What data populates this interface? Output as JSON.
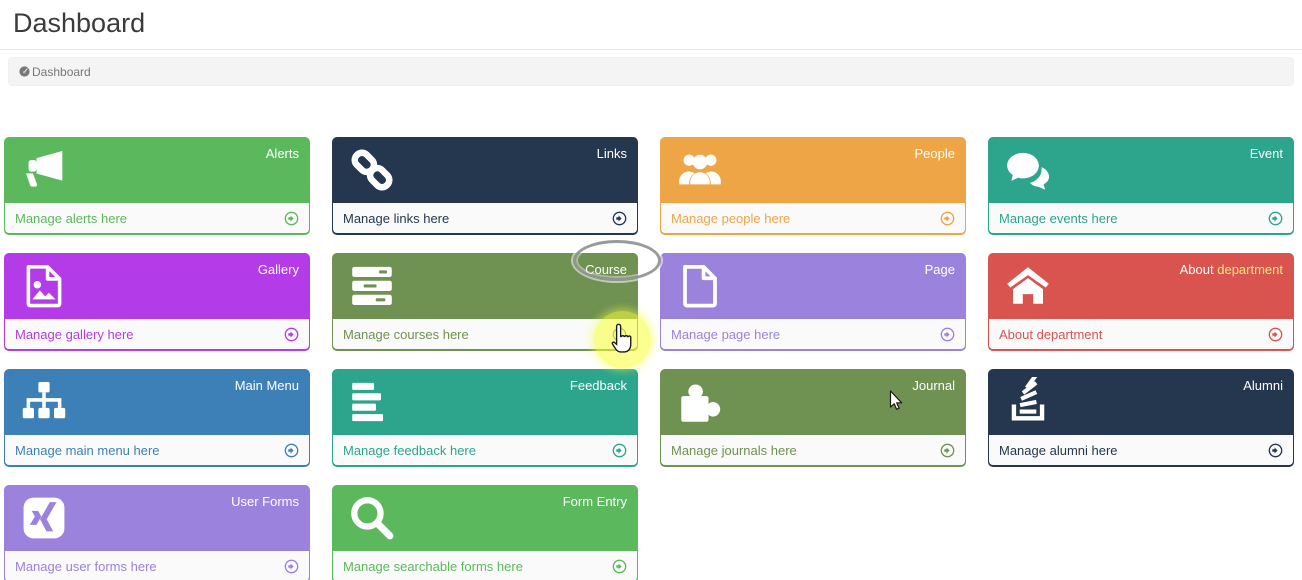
{
  "page_title": "Dashboard",
  "breadcrumb": {
    "icon": "dashboard-gauge-icon",
    "label": "Dashboard"
  },
  "footer_arrow_icon": "arrow-circle-right-icon",
  "cards": [
    {
      "id": "alerts",
      "label": "Alerts",
      "footer": "Manage alerts here",
      "icon": "megaphone-icon",
      "color": "#5cb85c"
    },
    {
      "id": "links",
      "label": "Links",
      "footer": "Manage links here",
      "icon": "chain-link-icon",
      "color": "#25374e"
    },
    {
      "id": "people",
      "label": "People",
      "footer": "Manage people here",
      "icon": "group-icon",
      "color": "#eda545"
    },
    {
      "id": "event",
      "label": "Event",
      "footer": "Manage events here",
      "icon": "speech-bubbles-icon",
      "color": "#2ca58c"
    },
    {
      "id": "gallery",
      "label": "Gallery",
      "footer": "Manage gallery here",
      "icon": "image-file-icon",
      "color": "#b43be8"
    },
    {
      "id": "course",
      "label": "Course",
      "footer": "Manage courses here",
      "icon": "server-icon",
      "color": "#6f9151"
    },
    {
      "id": "page",
      "label": "Page",
      "footer": "Manage page here",
      "icon": "file-icon",
      "color": "#9b82dd"
    },
    {
      "id": "about-department",
      "label": "About department",
      "label_parts": [
        {
          "text": "About ",
          "color": "#ffffff"
        },
        {
          "text": "department",
          "color": "#f3e97d"
        }
      ],
      "footer": "About department",
      "icon": "home-icon",
      "color": "#d9534f"
    },
    {
      "id": "main-menu",
      "label": "Main Menu",
      "footer": "Manage main menu here",
      "icon": "sitemap-icon",
      "color": "#3d80b8"
    },
    {
      "id": "feedback",
      "label": "Feedback",
      "footer": "Manage feedback here",
      "icon": "align-left-icon",
      "color": "#2ca58c"
    },
    {
      "id": "journal",
      "label": "Journal",
      "footer": "Manage journals here",
      "icon": "puzzle-piece-icon",
      "color": "#6f9151"
    },
    {
      "id": "alumni",
      "label": "Alumni",
      "footer": "Manage alumni here",
      "icon": "stack-overflow-icon",
      "color": "#25374e"
    },
    {
      "id": "user-forms",
      "label": "User Forms",
      "footer": "Manage user forms here",
      "icon": "xing-icon",
      "color": "#9b82dd"
    },
    {
      "id": "form-entry",
      "label": "Form Entry",
      "footer": "Manage searchable forms here",
      "icon": "search-icon",
      "color": "#5cb85c"
    }
  ],
  "annotations": {
    "label_ring": {
      "shape": "ellipse",
      "around": "Course card label",
      "color": "#919696"
    },
    "click_spot": {
      "shape": "circle",
      "around": "Manage courses here arrow",
      "color": "#f8ff3c"
    },
    "hand_cursor": {
      "icon": "hand-pointer-cursor-icon",
      "near": "Manage courses here arrow"
    },
    "arrow_cursor": {
      "icon": "arrow-pointer-cursor-icon",
      "near": "Journal card"
    }
  }
}
